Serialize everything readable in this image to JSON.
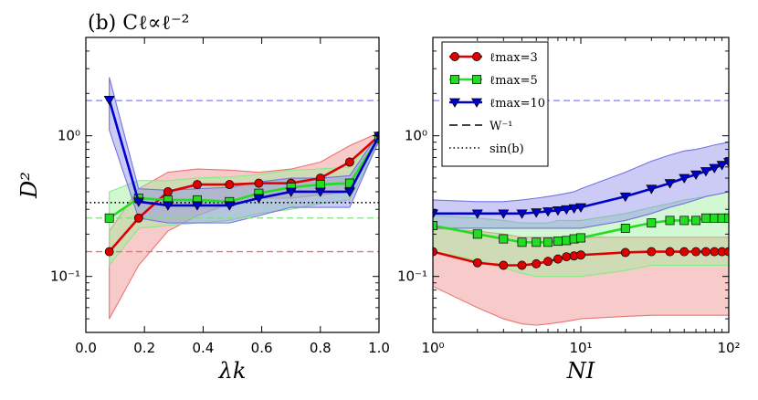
{
  "title": "(b) Cℓ∝ℓ⁻²",
  "chart_data": [
    {
      "type": "line",
      "panel": "left",
      "xlabel": "λk",
      "ylabel": "D²",
      "xscale": "linear",
      "yscale": "log",
      "xlim": [
        0.0,
        1.0
      ],
      "ylim": [
        0.04,
        5.0
      ],
      "xticks": [
        0.0,
        0.2,
        0.4,
        0.6,
        0.8,
        1.0
      ],
      "xtick_labels": [
        "0.0",
        "0.2",
        "0.4",
        "0.6",
        "0.8",
        "1.0"
      ],
      "yticks": [
        0.1,
        1.0
      ],
      "ytick_labels": [
        "10⁻¹",
        "10⁰"
      ],
      "hlines": [
        {
          "y": 1.78,
          "color": "#8080f0",
          "style": "dashed"
        },
        {
          "y": 0.26,
          "color": "#80e080",
          "style": "dashed"
        },
        {
          "y": 0.15,
          "color": "#f07070",
          "style": "dashed"
        },
        {
          "y": 0.335,
          "color": "#000000",
          "style": "dotted"
        }
      ],
      "series": [
        {
          "name": "ℓmax=3",
          "color": "#dd0000",
          "marker": "circle",
          "x": [
            0.08,
            0.18,
            0.28,
            0.38,
            0.49,
            0.59,
            0.7,
            0.8,
            0.9,
            1.0
          ],
          "y": [
            0.15,
            0.26,
            0.4,
            0.45,
            0.45,
            0.46,
            0.46,
            0.5,
            0.65,
            1.0
          ],
          "band_lo": [
            0.05,
            0.12,
            0.21,
            0.27,
            0.33,
            0.36,
            0.36,
            0.38,
            0.4,
            0.95
          ],
          "band_hi": [
            0.21,
            0.42,
            0.55,
            0.58,
            0.57,
            0.55,
            0.58,
            0.65,
            0.85,
            1.05
          ]
        },
        {
          "name": "ℓmax=5",
          "color": "#22dd22",
          "marker": "square",
          "x": [
            0.08,
            0.18,
            0.28,
            0.38,
            0.49,
            0.59,
            0.7,
            0.8,
            0.9,
            1.0
          ],
          "y": [
            0.26,
            0.36,
            0.35,
            0.35,
            0.34,
            0.39,
            0.43,
            0.45,
            0.46,
            0.97
          ],
          "band_lo": [
            0.12,
            0.22,
            0.23,
            0.24,
            0.25,
            0.28,
            0.3,
            0.33,
            0.35,
            0.9
          ],
          "band_hi": [
            0.4,
            0.48,
            0.48,
            0.5,
            0.51,
            0.53,
            0.57,
            0.58,
            0.6,
            1.03
          ]
        },
        {
          "name": "ℓmax=10",
          "color": "#0000cc",
          "marker": "triangle",
          "x": [
            0.08,
            0.18,
            0.28,
            0.38,
            0.49,
            0.59,
            0.7,
            0.8,
            0.9,
            1.0
          ],
          "y": [
            1.8,
            0.34,
            0.32,
            0.32,
            0.32,
            0.36,
            0.4,
            0.4,
            0.4,
            1.0
          ],
          "band_lo": [
            1.1,
            0.26,
            0.24,
            0.24,
            0.24,
            0.27,
            0.31,
            0.31,
            0.31,
            0.93
          ],
          "band_hi": [
            2.6,
            0.42,
            0.41,
            0.42,
            0.43,
            0.47,
            0.5,
            0.5,
            0.52,
            1.05
          ]
        }
      ]
    },
    {
      "type": "line",
      "panel": "right",
      "xlabel": "NI",
      "xscale": "log",
      "yscale": "log",
      "xlim": [
        1,
        100
      ],
      "ylim": [
        0.04,
        5.0
      ],
      "xticks": [
        1,
        10,
        100
      ],
      "xtick_labels": [
        "10⁰",
        "10¹",
        "10²"
      ],
      "yticks": [
        0.1,
        1.0
      ],
      "ytick_labels": [
        "10⁻¹",
        "10⁰"
      ],
      "hlines": [
        {
          "y": 1.78,
          "color": "#8080f0",
          "style": "dashed"
        }
      ],
      "series": [
        {
          "name": "ℓmax=3",
          "color": "#dd0000",
          "marker": "circle",
          "x": [
            1,
            2,
            3,
            4,
            5,
            6,
            7,
            8,
            9,
            10,
            20,
            30,
            40,
            50,
            60,
            70,
            80,
            90,
            100
          ],
          "y": [
            0.15,
            0.125,
            0.12,
            0.12,
            0.123,
            0.128,
            0.133,
            0.138,
            0.14,
            0.142,
            0.148,
            0.15,
            0.15,
            0.15,
            0.15,
            0.15,
            0.15,
            0.15,
            0.15
          ],
          "band_lo": [
            0.085,
            0.06,
            0.05,
            0.046,
            0.045,
            0.046,
            0.047,
            0.048,
            0.049,
            0.05,
            0.052,
            0.053,
            0.053,
            0.053,
            0.053,
            0.053,
            0.053,
            0.053,
            0.053
          ],
          "band_hi": [
            0.22,
            0.21,
            0.2,
            0.19,
            0.19,
            0.19,
            0.19,
            0.19,
            0.19,
            0.19,
            0.19,
            0.19,
            0.19,
            0.19,
            0.19,
            0.19,
            0.19,
            0.19,
            0.19
          ]
        },
        {
          "name": "ℓmax=5",
          "color": "#22dd22",
          "marker": "square",
          "x": [
            1,
            2,
            3,
            4,
            5,
            6,
            7,
            8,
            9,
            10,
            20,
            30,
            40,
            50,
            60,
            70,
            80,
            90,
            100
          ],
          "y": [
            0.23,
            0.2,
            0.185,
            0.175,
            0.175,
            0.175,
            0.178,
            0.18,
            0.185,
            0.188,
            0.22,
            0.24,
            0.25,
            0.25,
            0.25,
            0.26,
            0.26,
            0.26,
            0.26
          ],
          "band_lo": [
            0.15,
            0.13,
            0.115,
            0.105,
            0.1,
            0.1,
            0.1,
            0.1,
            0.1,
            0.1,
            0.11,
            0.12,
            0.12,
            0.12,
            0.12,
            0.12,
            0.12,
            0.12,
            0.12
          ],
          "band_hi": [
            0.27,
            0.26,
            0.25,
            0.24,
            0.24,
            0.24,
            0.25,
            0.25,
            0.25,
            0.25,
            0.28,
            0.31,
            0.33,
            0.35,
            0.36,
            0.37,
            0.38,
            0.39,
            0.4
          ]
        },
        {
          "name": "ℓmax=10",
          "color": "#0000cc",
          "marker": "triangle",
          "x": [
            1,
            2,
            3,
            4,
            5,
            6,
            7,
            8,
            9,
            10,
            20,
            30,
            40,
            50,
            60,
            70,
            80,
            90,
            100
          ],
          "y": [
            0.28,
            0.28,
            0.28,
            0.28,
            0.285,
            0.29,
            0.295,
            0.3,
            0.305,
            0.31,
            0.37,
            0.42,
            0.46,
            0.5,
            0.53,
            0.56,
            0.59,
            0.62,
            0.65
          ],
          "band_lo": [
            0.22,
            0.22,
            0.22,
            0.22,
            0.22,
            0.22,
            0.22,
            0.22,
            0.22,
            0.22,
            0.25,
            0.28,
            0.31,
            0.33,
            0.35,
            0.37,
            0.38,
            0.39,
            0.4
          ],
          "band_hi": [
            0.35,
            0.34,
            0.34,
            0.35,
            0.36,
            0.37,
            0.38,
            0.39,
            0.4,
            0.42,
            0.55,
            0.66,
            0.73,
            0.78,
            0.8,
            0.83,
            0.86,
            0.88,
            0.9
          ]
        }
      ]
    }
  ],
  "legend": {
    "placement": "top-left",
    "entries": [
      {
        "label": "ℓmax=3",
        "color": "#dd0000",
        "marker": "circle",
        "style": "solid"
      },
      {
        "label": "ℓmax=5",
        "color": "#22dd22",
        "marker": "square",
        "style": "solid"
      },
      {
        "label": "ℓmax=10",
        "color": "#0000cc",
        "marker": "triangle",
        "style": "solid"
      },
      {
        "label": "W⁻¹",
        "color": "#000000",
        "marker": "none",
        "style": "dashed"
      },
      {
        "label": "sin(b)",
        "color": "#000000",
        "marker": "none",
        "style": "dotted"
      }
    ]
  }
}
